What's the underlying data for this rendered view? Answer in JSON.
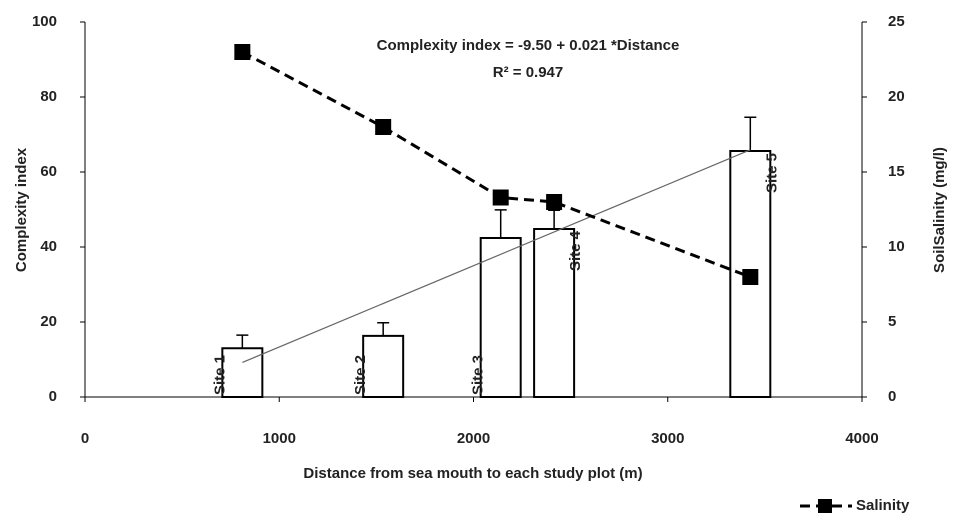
{
  "chart_data": {
    "type": "bar",
    "x": [
      810,
      1535,
      2140,
      2415,
      3425
    ],
    "series": [
      {
        "values": [
          13,
          16.3,
          42.4,
          44.8,
          65.6
        ],
        "errors": [
          3.5,
          3.5,
          7.5,
          5,
          9
        ],
        "labels": [
          "Site 1",
          "Site 2",
          "Site 3",
          "Site 4",
          "Site 5"
        ],
        "color": "#ffffff"
      },
      {
        "name": "Salinity",
        "type": "line",
        "axis": "y2",
        "values": [
          23,
          18,
          13.3,
          13,
          8
        ],
        "color": "#000000"
      }
    ],
    "xlim": [
      0,
      4000
    ],
    "xticks": [
      0,
      1000,
      2000,
      3000,
      4000
    ],
    "ylim": [
      0,
      100
    ],
    "yticks": [
      0,
      20,
      40,
      60,
      80,
      100
    ],
    "y2lim": [
      0,
      25
    ],
    "y2ticks": [
      0,
      5,
      10,
      15,
      20,
      25
    ],
    "xlabel": "Distance from sea mouth to each study plot (m)",
    "ylabel": "Complexity index",
    "y2label": "SoilSalinity (mg/l)",
    "annotations": [
      "Complexity index  = -9.50 + 0.021 *Distance",
      "R² = 0.947"
    ],
    "legend": "bottom-right"
  }
}
